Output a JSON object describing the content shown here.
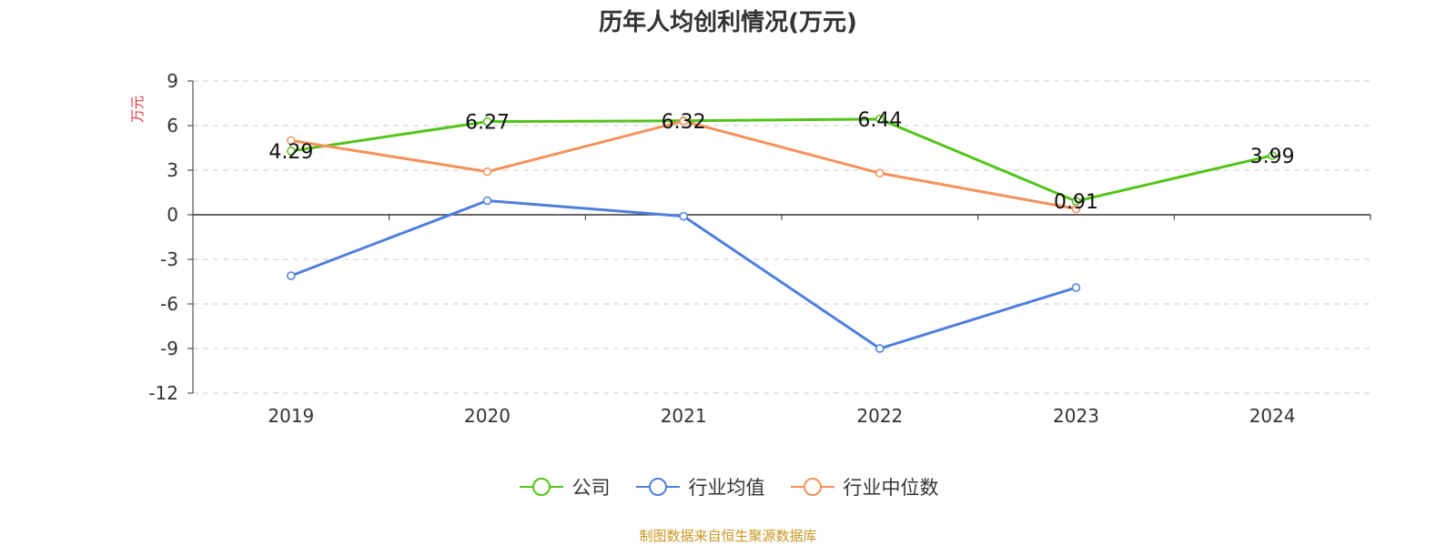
{
  "chart_data": {
    "type": "line",
    "title": "历年人均创利情况(万元)",
    "ylabel": "万元",
    "xlabel": "",
    "categories": [
      "2019",
      "2020",
      "2021",
      "2022",
      "2023",
      "2024"
    ],
    "ylim": [
      -12,
      9
    ],
    "yticks": [
      9,
      6,
      3,
      0,
      -3,
      -6,
      -9,
      -12
    ],
    "grid": true,
    "legend_position": "bottom",
    "series": [
      {
        "name": "公司",
        "color": "#52c41a",
        "values": [
          4.29,
          6.27,
          6.32,
          6.44,
          0.91,
          3.99
        ],
        "show_labels": true
      },
      {
        "name": "行业均值",
        "color": "#4e7fdc",
        "values": [
          -4.1,
          0.95,
          -0.1,
          -9.0,
          -4.9,
          null
        ],
        "show_labels": false
      },
      {
        "name": "行业中位数",
        "color": "#f5915a",
        "values": [
          5.0,
          2.9,
          6.3,
          2.8,
          0.4,
          null
        ],
        "show_labels": false
      }
    ]
  },
  "source": "制图数据来自恒生聚源数据库"
}
